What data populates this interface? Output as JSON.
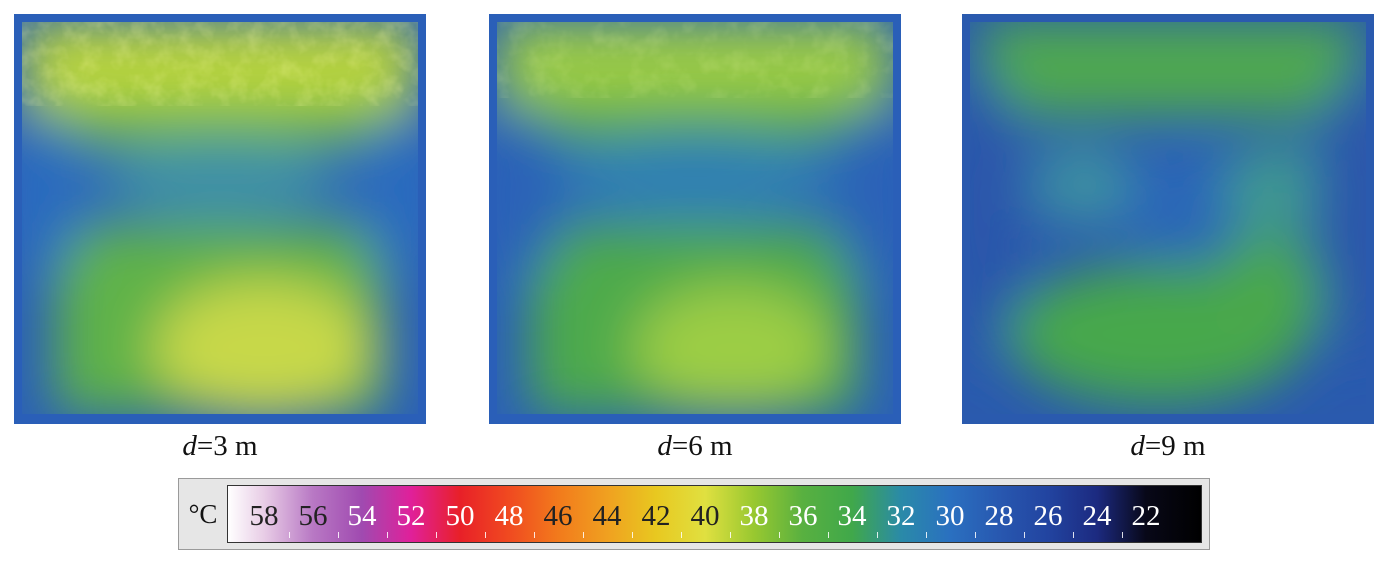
{
  "panels": [
    {
      "caption_var": "d",
      "caption_eq": "=",
      "caption_value": "3 m",
      "hot_spot": "bottom-center",
      "intensity": "high"
    },
    {
      "caption_var": "d",
      "caption_eq": "=",
      "caption_value": "6 m",
      "hot_spot": "bottom-center",
      "intensity": "medium"
    },
    {
      "caption_var": "d",
      "caption_eq": "=",
      "caption_value": "9 m",
      "hot_spot": "bottom-center",
      "intensity": "low"
    }
  ],
  "colorbar": {
    "unit": "°C",
    "ticks": [
      "58",
      "56",
      "54",
      "52",
      "50",
      "48",
      "46",
      "44",
      "42",
      "40",
      "38",
      "36",
      "34",
      "32",
      "30",
      "28",
      "26",
      "24",
      "22"
    ],
    "colors": {
      "58": "#e8cde6",
      "56": "#b878c4",
      "54": "#a04ab0",
      "52": "#e0209a",
      "50": "#e82028",
      "48": "#f04a20",
      "46": "#f27a1c",
      "44": "#f0a020",
      "42": "#e8c820",
      "40": "#e0e040",
      "38": "#98c830",
      "36": "#58b040",
      "34": "#40a84a",
      "32": "#2a8aa8",
      "30": "#2a70c0",
      "28": "#2858b0",
      "26": "#2244a0",
      "24": "#1c2a80",
      "22": "#080818"
    }
  }
}
